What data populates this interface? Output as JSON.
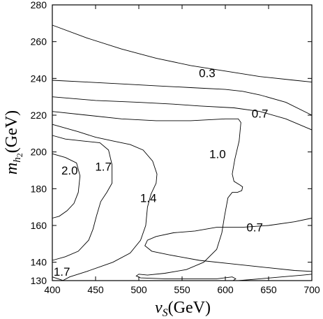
{
  "chart_data": {
    "type": "contour",
    "xlim": [
      400,
      700
    ],
    "ylim": [
      130,
      280
    ],
    "x_ticks": [
      400,
      450,
      500,
      550,
      600,
      650,
      700
    ],
    "y_ticks": [
      130,
      140,
      160,
      180,
      200,
      220,
      240,
      260,
      280
    ],
    "xlabel": {
      "var": "v",
      "sub": "S",
      "unit": "(GeV)"
    },
    "ylabel": {
      "var": "m",
      "sub": "h",
      "subsub": "2",
      "unit": "(GeV)"
    },
    "contour_labels": [
      {
        "text": "0.3",
        "x": 579,
        "y": 243
      },
      {
        "text": "0.7",
        "x": 640,
        "y": 221
      },
      {
        "text": "1.0",
        "x": 591,
        "y": 199
      },
      {
        "text": "2.0",
        "x": 420,
        "y": 190
      },
      {
        "text": "1.7",
        "x": 459,
        "y": 192
      },
      {
        "text": "1.4",
        "x": 511,
        "y": 175
      },
      {
        "text": "0.7",
        "x": 634,
        "y": 159
      },
      {
        "text": "1.7",
        "x": 411,
        "y": 135
      }
    ],
    "contours": [
      {
        "points": [
          [
            400,
            269
          ],
          [
            440,
            262
          ],
          [
            480,
            256
          ],
          [
            520,
            251
          ],
          [
            560,
            247
          ],
          [
            600,
            244
          ],
          [
            640,
            241
          ],
          [
            680,
            239
          ],
          [
            700,
            238
          ]
        ]
      },
      {
        "points": [
          [
            400,
            239
          ],
          [
            440,
            238
          ],
          [
            480,
            237
          ],
          [
            520,
            236
          ],
          [
            560,
            235
          ],
          [
            600,
            234
          ],
          [
            620,
            233
          ],
          [
            640,
            231
          ],
          [
            670,
            227
          ],
          [
            700,
            220
          ]
        ]
      },
      {
        "points": [
          [
            400,
            230
          ],
          [
            450,
            228
          ],
          [
            500,
            227
          ],
          [
            540,
            226
          ],
          [
            570,
            225
          ],
          [
            610,
            224
          ],
          [
            640,
            222
          ],
          [
            670,
            218
          ],
          [
            700,
            212
          ]
        ]
      },
      {
        "points": [
          [
            400,
            222
          ],
          [
            440,
            220
          ],
          [
            480,
            218
          ],
          [
            520,
            217
          ],
          [
            560,
            217
          ],
          [
            600,
            218
          ],
          [
            615,
            218
          ],
          [
            618,
            216
          ],
          [
            616,
            206
          ],
          [
            611,
            196
          ],
          [
            608,
            188
          ],
          [
            610,
            184
          ],
          [
            617,
            182
          ],
          [
            620,
            181
          ],
          [
            619,
            179
          ],
          [
            614,
            178
          ],
          [
            608,
            178
          ],
          [
            603,
            175
          ],
          [
            599,
            165
          ],
          [
            596,
            156
          ],
          [
            590,
            147
          ],
          [
            575,
            140
          ],
          [
            555,
            136
          ],
          [
            530,
            134
          ],
          [
            510,
            133
          ],
          [
            500,
            133.5
          ],
          [
            497,
            132.5
          ],
          [
            502,
            131.5
          ],
          [
            530,
            131
          ],
          [
            560,
            131
          ],
          [
            590,
            131
          ],
          [
            608,
            132
          ],
          [
            612,
            131
          ],
          [
            609,
            130
          ]
        ]
      },
      {
        "points": [
          [
            400,
            215
          ],
          [
            430,
            211
          ],
          [
            450,
            208
          ],
          [
            470,
            206
          ],
          [
            490,
            204
          ],
          [
            505,
            201
          ],
          [
            516,
            195
          ],
          [
            521,
            188
          ],
          [
            520,
            183
          ],
          [
            514,
            177
          ],
          [
            510,
            170
          ],
          [
            508,
            160
          ],
          [
            502,
            152
          ],
          [
            490,
            145
          ],
          [
            470,
            140
          ],
          [
            440,
            135
          ],
          [
            420,
            132
          ],
          [
            412,
            130
          ]
        ]
      },
      {
        "points": [
          [
            400,
            209
          ],
          [
            415,
            207
          ],
          [
            435,
            206
          ],
          [
            455,
            205
          ],
          [
            465,
            201
          ],
          [
            469,
            193
          ],
          [
            469,
            183
          ],
          [
            463,
            178
          ],
          [
            456,
            173
          ],
          [
            451,
            165
          ],
          [
            447,
            158
          ],
          [
            442,
            152
          ],
          [
            430,
            146
          ],
          [
            415,
            143
          ],
          [
            400,
            141
          ]
        ]
      },
      {
        "points": [
          [
            400,
            199
          ],
          [
            415,
            197
          ],
          [
            428,
            194
          ],
          [
            432,
            187
          ],
          [
            430,
            178
          ],
          [
            425,
            172
          ],
          [
            417,
            168
          ],
          [
            408,
            165
          ],
          [
            400,
            164
          ]
        ]
      },
      {
        "points": [
          [
            400,
            132
          ],
          [
            413,
            130
          ],
          [
            428,
            130
          ]
        ]
      },
      {
        "points": [
          [
            700,
            164
          ],
          [
            680,
            162
          ],
          [
            650,
            160
          ],
          [
            620,
            159
          ],
          [
            590,
            159
          ],
          [
            565,
            157
          ],
          [
            540,
            156
          ],
          [
            520,
            154
          ],
          [
            510,
            152
          ],
          [
            507,
            149
          ],
          [
            515,
            146
          ],
          [
            535,
            144
          ],
          [
            570,
            141
          ],
          [
            610,
            139
          ],
          [
            650,
            137
          ],
          [
            680,
            135.5
          ],
          [
            700,
            135
          ]
        ]
      },
      {
        "points": [
          [
            615,
            130
          ],
          [
            640,
            131
          ],
          [
            665,
            132
          ],
          [
            690,
            133
          ],
          [
            700,
            133.5
          ]
        ]
      }
    ]
  }
}
